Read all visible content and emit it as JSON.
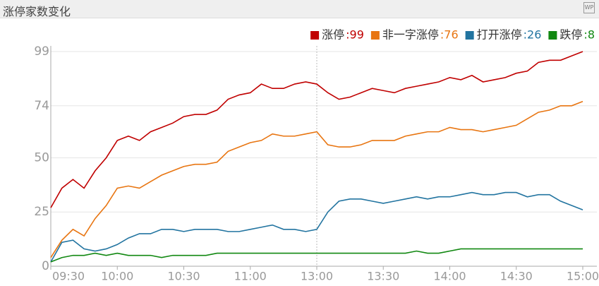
{
  "title": "涨停家数变化",
  "chart_data": {
    "type": "line",
    "categories": [
      "09:30",
      null,
      null,
      null,
      null,
      null,
      "10:00",
      null,
      null,
      null,
      null,
      null,
      "10:30",
      null,
      null,
      null,
      null,
      null,
      "11:00",
      null,
      null,
      null,
      null,
      null,
      "13:00",
      null,
      null,
      null,
      null,
      null,
      "13:30",
      null,
      null,
      null,
      null,
      null,
      "14:00",
      null,
      null,
      null,
      null,
      null,
      "14:30",
      null,
      null,
      null,
      null,
      null,
      "15:00"
    ],
    "ylim": [
      0,
      99
    ],
    "yticks": [
      0,
      25,
      50,
      74,
      99
    ],
    "grid": true,
    "series": [
      {
        "name": "涨停",
        "legend_value": ":99",
        "color": "#c00000",
        "values": [
          27,
          36,
          40,
          36,
          44,
          50,
          58,
          60,
          58,
          62,
          64,
          66,
          69,
          70,
          70,
          72,
          77,
          79,
          80,
          84,
          82,
          82,
          84,
          85,
          84,
          80,
          77,
          78,
          80,
          82,
          81,
          80,
          82,
          83,
          84,
          85,
          87,
          86,
          88,
          85,
          86,
          87,
          89,
          90,
          94,
          95,
          95,
          97,
          99
        ]
      },
      {
        "name": "非一字涨停",
        "legend_value": ":76",
        "color": "#e87511",
        "values": [
          4,
          12,
          17,
          14,
          22,
          28,
          36,
          37,
          36,
          39,
          42,
          44,
          46,
          47,
          47,
          48,
          53,
          55,
          57,
          58,
          61,
          60,
          60,
          61,
          62,
          56,
          55,
          55,
          56,
          58,
          58,
          58,
          60,
          61,
          62,
          62,
          64,
          63,
          63,
          62,
          63,
          64,
          65,
          68,
          71,
          72,
          74,
          74,
          76
        ]
      },
      {
        "name": "打开涨停",
        "legend_value": ":26",
        "color": "#2274a0",
        "values": [
          2,
          11,
          12,
          8,
          7,
          8,
          10,
          13,
          15,
          15,
          17,
          17,
          16,
          17,
          17,
          17,
          16,
          16,
          17,
          18,
          19,
          17,
          17,
          16,
          17,
          25,
          30,
          31,
          31,
          30,
          29,
          30,
          31,
          32,
          31,
          32,
          32,
          33,
          34,
          33,
          33,
          34,
          34,
          32,
          33,
          33,
          30,
          28,
          26
        ]
      },
      {
        "name": "跌停",
        "legend_value": ":8",
        "color": "#118811",
        "values": [
          2,
          4,
          5,
          5,
          6,
          5,
          6,
          5,
          5,
          5,
          4,
          5,
          5,
          5,
          5,
          6,
          6,
          6,
          6,
          6,
          6,
          6,
          6,
          6,
          6,
          6,
          6,
          6,
          6,
          6,
          6,
          6,
          6,
          7,
          6,
          6,
          7,
          8,
          8,
          8,
          8,
          8,
          8,
          8,
          8,
          8,
          8,
          8,
          8
        ]
      }
    ]
  }
}
